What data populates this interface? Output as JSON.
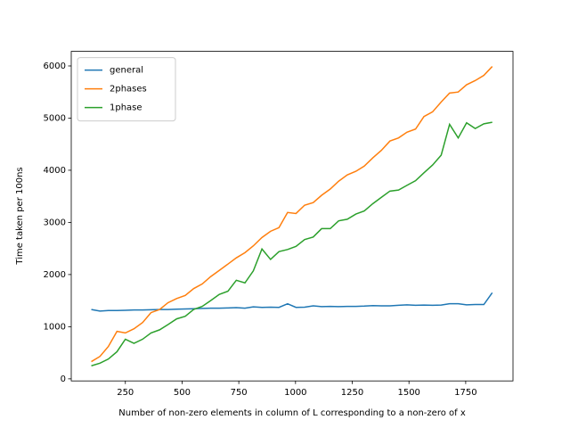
{
  "chart_data": {
    "type": "line",
    "xlabel": "Number of non-zero elements in column of L corresponding to a non-zero of x",
    "ylabel": "Time taken per 100ns",
    "x": [
      100,
      138,
      175,
      213,
      250,
      288,
      326,
      363,
      401,
      438,
      476,
      514,
      551,
      589,
      626,
      664,
      702,
      739,
      777,
      814,
      852,
      890,
      927,
      965,
      1002,
      1040,
      1078,
      1115,
      1153,
      1190,
      1228,
      1266,
      1303,
      1341,
      1378,
      1416,
      1454,
      1491,
      1529,
      1566,
      1604,
      1642,
      1679,
      1717,
      1754,
      1792,
      1830,
      1867
    ],
    "series": [
      {
        "name": "general",
        "color": "#1f77b4",
        "values": [
          1330,
          1300,
          1310,
          1310,
          1315,
          1320,
          1320,
          1325,
          1330,
          1330,
          1335,
          1340,
          1345,
          1350,
          1355,
          1355,
          1360,
          1365,
          1355,
          1380,
          1370,
          1375,
          1370,
          1440,
          1370,
          1375,
          1400,
          1385,
          1390,
          1385,
          1390,
          1390,
          1395,
          1405,
          1400,
          1400,
          1410,
          1420,
          1410,
          1415,
          1410,
          1415,
          1440,
          1440,
          1420,
          1425,
          1425,
          1650
        ]
      },
      {
        "name": "2phases",
        "color": "#ff7f0e",
        "values": [
          330,
          430,
          620,
          910,
          880,
          960,
          1080,
          1270,
          1330,
          1460,
          1540,
          1600,
          1730,
          1820,
          1960,
          2080,
          2200,
          2320,
          2420,
          2550,
          2710,
          2830,
          2900,
          3190,
          3170,
          3330,
          3380,
          3520,
          3640,
          3790,
          3910,
          3980,
          4080,
          4240,
          4380,
          4560,
          4620,
          4730,
          4790,
          5030,
          5120,
          5310,
          5480,
          5500,
          5640,
          5720,
          5820,
          5990
        ]
      },
      {
        "name": "1phase",
        "color": "#2ca02c",
        "values": [
          250,
          300,
          380,
          520,
          760,
          680,
          760,
          880,
          940,
          1040,
          1150,
          1200,
          1330,
          1390,
          1500,
          1620,
          1680,
          1890,
          1840,
          2070,
          2490,
          2290,
          2440,
          2480,
          2540,
          2670,
          2720,
          2880,
          2880,
          3030,
          3060,
          3160,
          3220,
          3360,
          3480,
          3600,
          3620,
          3710,
          3800,
          3950,
          4100,
          4290,
          4880,
          4620,
          4910,
          4800,
          4890,
          4920
        ]
      }
    ],
    "xlim": [
      11.5,
      1958.5
    ],
    "xticks": [
      250,
      500,
      750,
      1000,
      1250,
      1500,
      1750
    ],
    "ylim": [
      -40,
      6280
    ],
    "yticks": [
      0,
      1000,
      2000,
      3000,
      4000,
      5000,
      6000
    ],
    "legend": "upper left"
  }
}
